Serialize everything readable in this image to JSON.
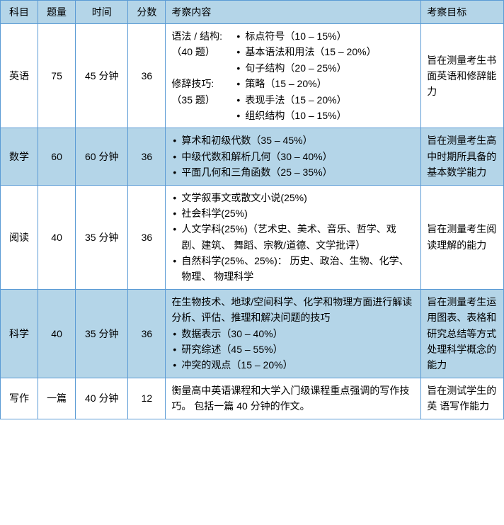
{
  "headers": {
    "subject": "科目",
    "qty": "题量",
    "time": "时间",
    "score": "分数",
    "content": "考察内容",
    "goal": "考察目标"
  },
  "rows": [
    {
      "subject": "英语",
      "qty": "75",
      "time": "45 分钟",
      "score": "36",
      "english_section1_label": "语法 / 结构:（40 题）",
      "english_section1_items": [
        "标点符号（10 – 15%）",
        "基本语法和用法（15 – 20%）",
        "句子结构（20 – 25%）"
      ],
      "english_section2_label": "修辞技巧:（35 题）",
      "english_section2_items": [
        "策略（15 – 20%）",
        "表现手法（15 – 20%）",
        "组织结构（10 – 15%）"
      ],
      "goal": "旨在测量考生书面英语和修辞能力"
    },
    {
      "subject": "数学",
      "qty": "60",
      "time": "60 分钟",
      "score": "36",
      "items": [
        "算术和初级代数（35 – 45%）",
        "中级代数和解析几何（30 – 40%）",
        "平面几何和三角函数（25 – 35%）"
      ],
      "goal": "旨在测量考生高中时期所具备的基本数学能力"
    },
    {
      "subject": "阅读",
      "qty": "40",
      "time": "35 分钟",
      "score": "36",
      "items": [
        "文学叙事文或散文小说(25%)",
        "社会科学(25%)",
        "人文学科(25%)（艺术史、美术、音乐、哲学、戏剧、建筑、 舞蹈、宗教/道德、文学批评）",
        "自然科学(25%、25%)： 历史、政治、生物、化学、物理、 物理科学"
      ],
      "goal": "旨在测量考生阅读理解的能力"
    },
    {
      "subject": "科学",
      "qty": "40",
      "time": "35 分钟",
      "score": "36",
      "intro": "在生物技术、地球/空间科学、化学和物理方面进行解读分析、评估、推理和解决问题的技巧",
      "items": [
        "数据表示（30 – 40%）",
        "研究综述（45 – 55%）",
        "冲突的观点（15 – 20%）"
      ],
      "goal": "旨在测量考生运用图表、表格和研究总结等方式处理科学概念的能力"
    },
    {
      "subject": "写作",
      "qty": "一篇",
      "time": "40 分钟",
      "score": "12",
      "text": "衡量高中英语课程和大学入门级课程重点强调的写作技巧。 包括一篇 40 分钟的作文。",
      "goal": "旨在测试学生的英 语写作能力"
    }
  ],
  "colors": {
    "border": "#5b9bd5",
    "header_bg": "#b4d5e8",
    "alt_bg": "#b4d5e8",
    "normal_bg": "#ffffff"
  }
}
